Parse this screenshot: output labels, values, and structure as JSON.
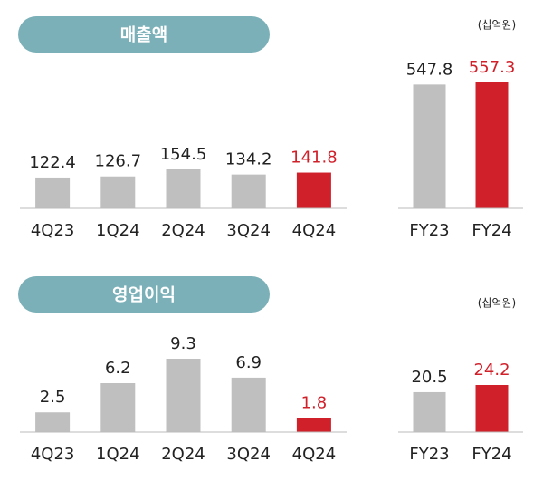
{
  "chart_data": [
    {
      "type": "bar",
      "title": "매출액",
      "categories": [
        "4Q23",
        "1Q24",
        "2Q24",
        "3Q24",
        "4Q24"
      ],
      "values": [
        122.4,
        126.7,
        154.5,
        134.2,
        141.8
      ],
      "colors": [
        "#bfbfbf",
        "#bfbfbf",
        "#bfbfbf",
        "#bfbfbf",
        "#d0202a"
      ],
      "label_colors": [
        "#222222",
        "#222222",
        "#222222",
        "#222222",
        "#d0202a"
      ]
    },
    {
      "type": "bar",
      "annotation": "(십억원)",
      "categories": [
        "FY23",
        "FY24"
      ],
      "values": [
        547.8,
        557.3
      ],
      "colors": [
        "#bfbfbf",
        "#d0202a"
      ],
      "label_colors": [
        "#222222",
        "#d0202a"
      ]
    },
    {
      "type": "bar",
      "title": "영업이익",
      "categories": [
        "4Q23",
        "1Q24",
        "2Q24",
        "3Q24",
        "4Q24"
      ],
      "values": [
        2.5,
        6.2,
        9.3,
        6.9,
        1.8
      ],
      "colors": [
        "#bfbfbf",
        "#bfbfbf",
        "#bfbfbf",
        "#bfbfbf",
        "#d0202a"
      ],
      "label_colors": [
        "#222222",
        "#222222",
        "#222222",
        "#222222",
        "#d0202a"
      ]
    },
    {
      "type": "bar",
      "annotation": "(십억원)",
      "categories": [
        "FY23",
        "FY24"
      ],
      "values": [
        20.5,
        24.2
      ],
      "colors": [
        "#bfbfbf",
        "#d0202a"
      ],
      "label_colors": [
        "#222222",
        "#d0202a"
      ]
    }
  ]
}
